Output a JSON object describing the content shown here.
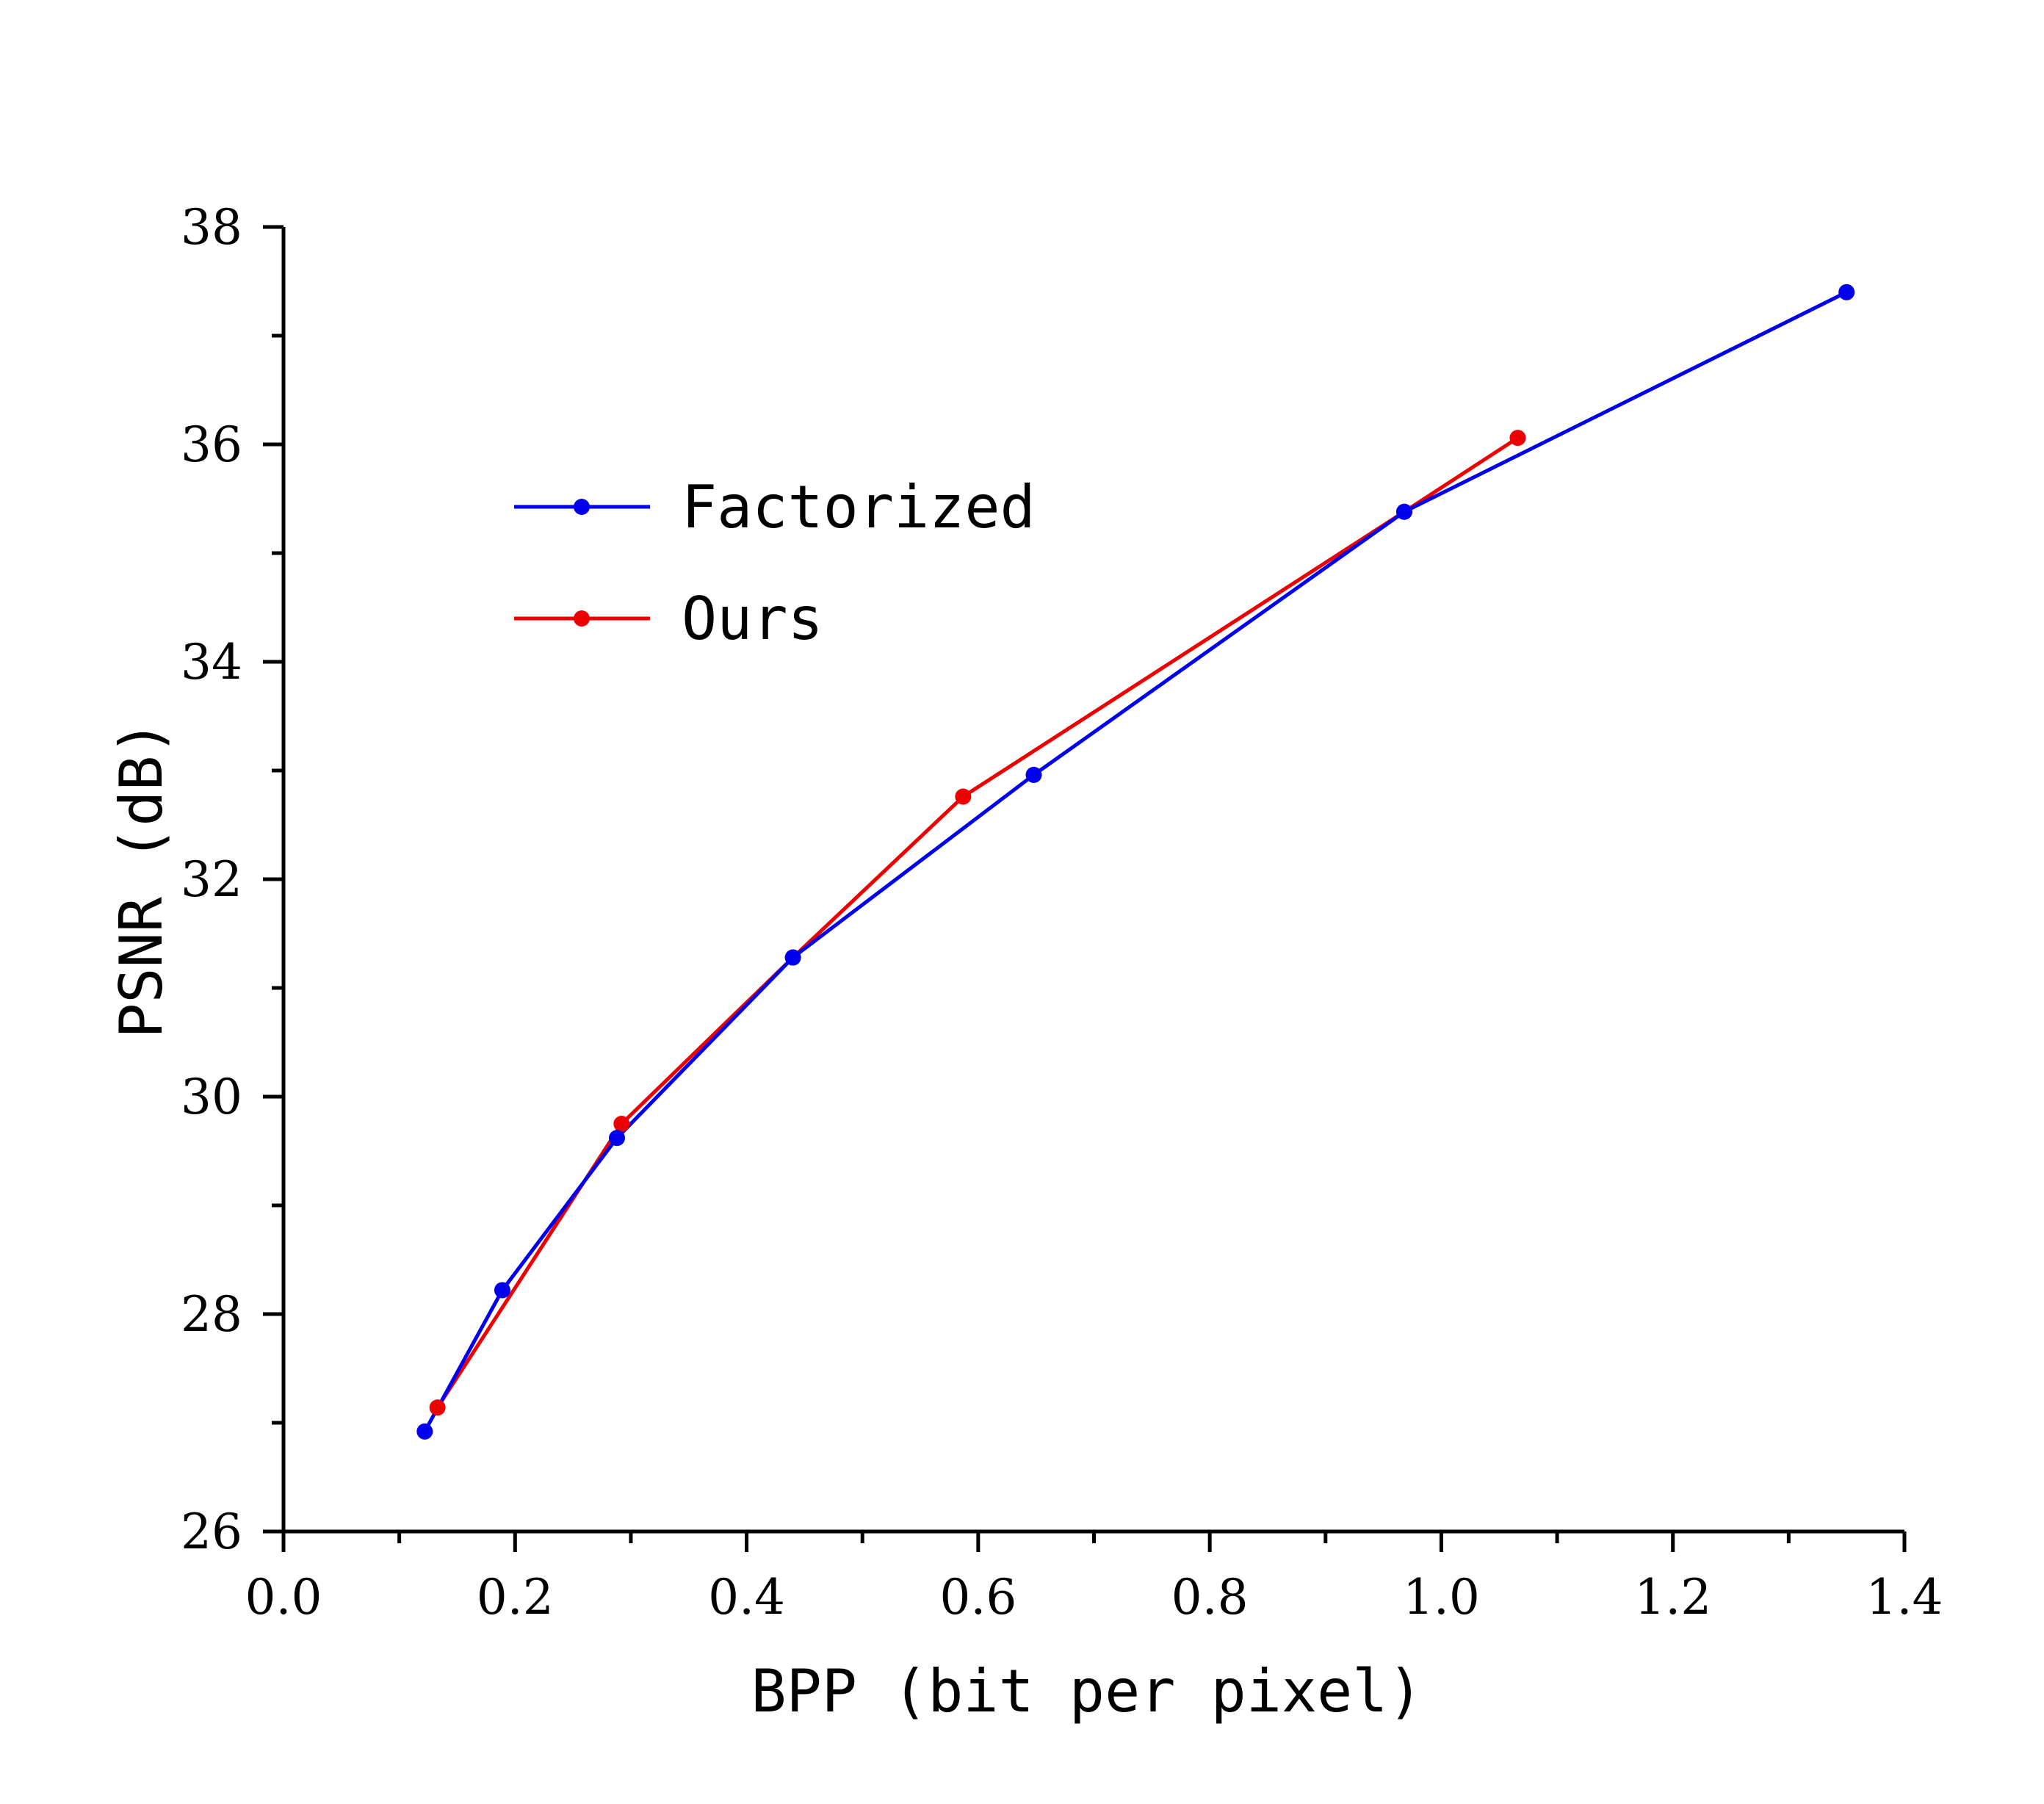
{
  "chart_data": {
    "type": "line",
    "title": "",
    "xlabel": "BPP (bit per pixel)",
    "ylabel": "PSNR (dB)",
    "xlim": [
      0.0,
      1.4
    ],
    "ylim": [
      26,
      38
    ],
    "xticks": [
      "0.0",
      "0.2",
      "0.4",
      "0.6",
      "0.8",
      "1.0",
      "1.2",
      "1.4"
    ],
    "yticks": [
      "26",
      "28",
      "30",
      "32",
      "34",
      "36",
      "38"
    ],
    "grid": false,
    "legend_position": "upper-left",
    "series": [
      {
        "name": "Factorized",
        "color": "#0000ee",
        "x": [
          0.122,
          0.189,
          0.288,
          0.44,
          0.648,
          0.968,
          1.35
        ],
        "y": [
          26.92,
          28.22,
          29.62,
          31.28,
          32.96,
          35.38,
          37.4
        ]
      },
      {
        "name": "Ours",
        "color": "#ee0000",
        "x": [
          0.133,
          0.292,
          0.44,
          0.587,
          0.968,
          1.066
        ],
        "y": [
          27.14,
          29.75,
          31.28,
          32.76,
          35.38,
          36.06
        ]
      }
    ]
  }
}
